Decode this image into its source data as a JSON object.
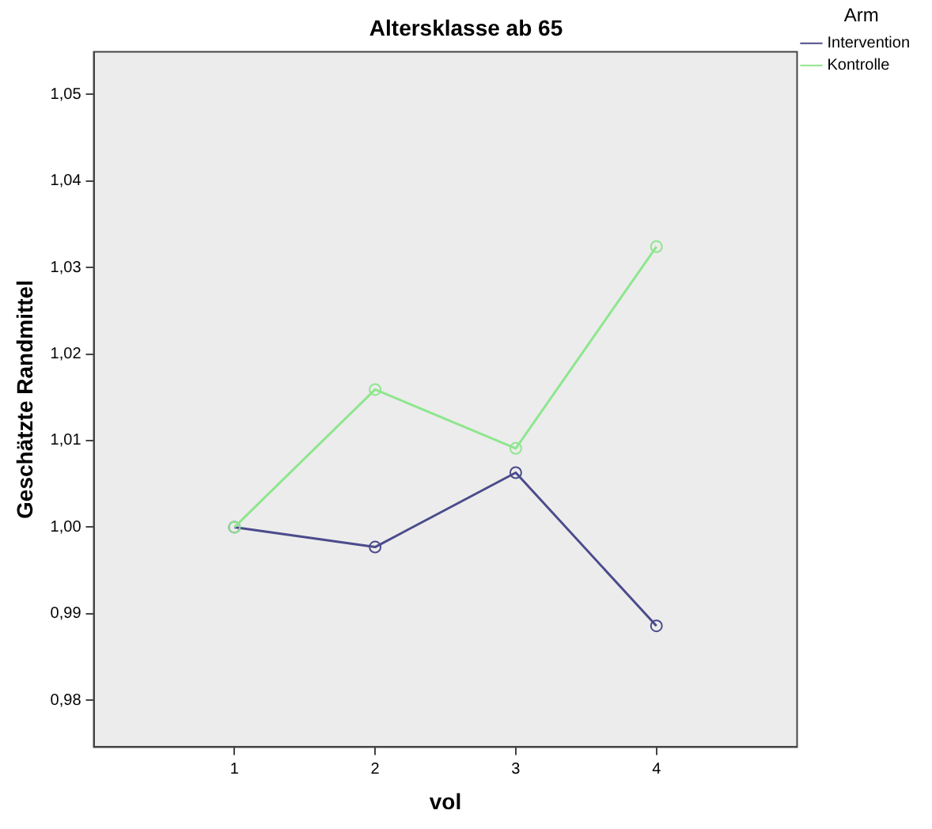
{
  "chart_data": {
    "type": "line",
    "title": "Altersklasse ab 65",
    "xlabel": "vol",
    "ylabel": "Geschätzte Randmittel",
    "legend_title": "Arm",
    "legend": "top right",
    "marker": "circle",
    "line_style": "solid",
    "grid": false,
    "x": [
      1,
      2,
      3,
      4
    ],
    "xlim": [
      0,
      5
    ],
    "xticks": [
      1,
      2,
      3,
      4
    ],
    "ylim": [
      0.9746,
      1.0549
    ],
    "yticks": [
      {
        "value": 0.98,
        "label": "0,98"
      },
      {
        "value": 0.99,
        "label": "0,99"
      },
      {
        "value": 1.0,
        "label": "1,00"
      },
      {
        "value": 1.01,
        "label": "1,01"
      },
      {
        "value": 1.02,
        "label": "1,02"
      },
      {
        "value": 1.03,
        "label": "1,03"
      },
      {
        "value": 1.04,
        "label": "1,04"
      },
      {
        "value": 1.05,
        "label": "1,05"
      }
    ],
    "series": [
      {
        "name": "Intervention",
        "color": "#4b4b8c",
        "values": [
          1.0,
          0.9977,
          1.0063,
          0.9886
        ]
      },
      {
        "name": "Kontrolle",
        "color": "#8ee68e",
        "values": [
          1.0,
          1.0159,
          1.0091,
          1.0324
        ]
      }
    ]
  }
}
